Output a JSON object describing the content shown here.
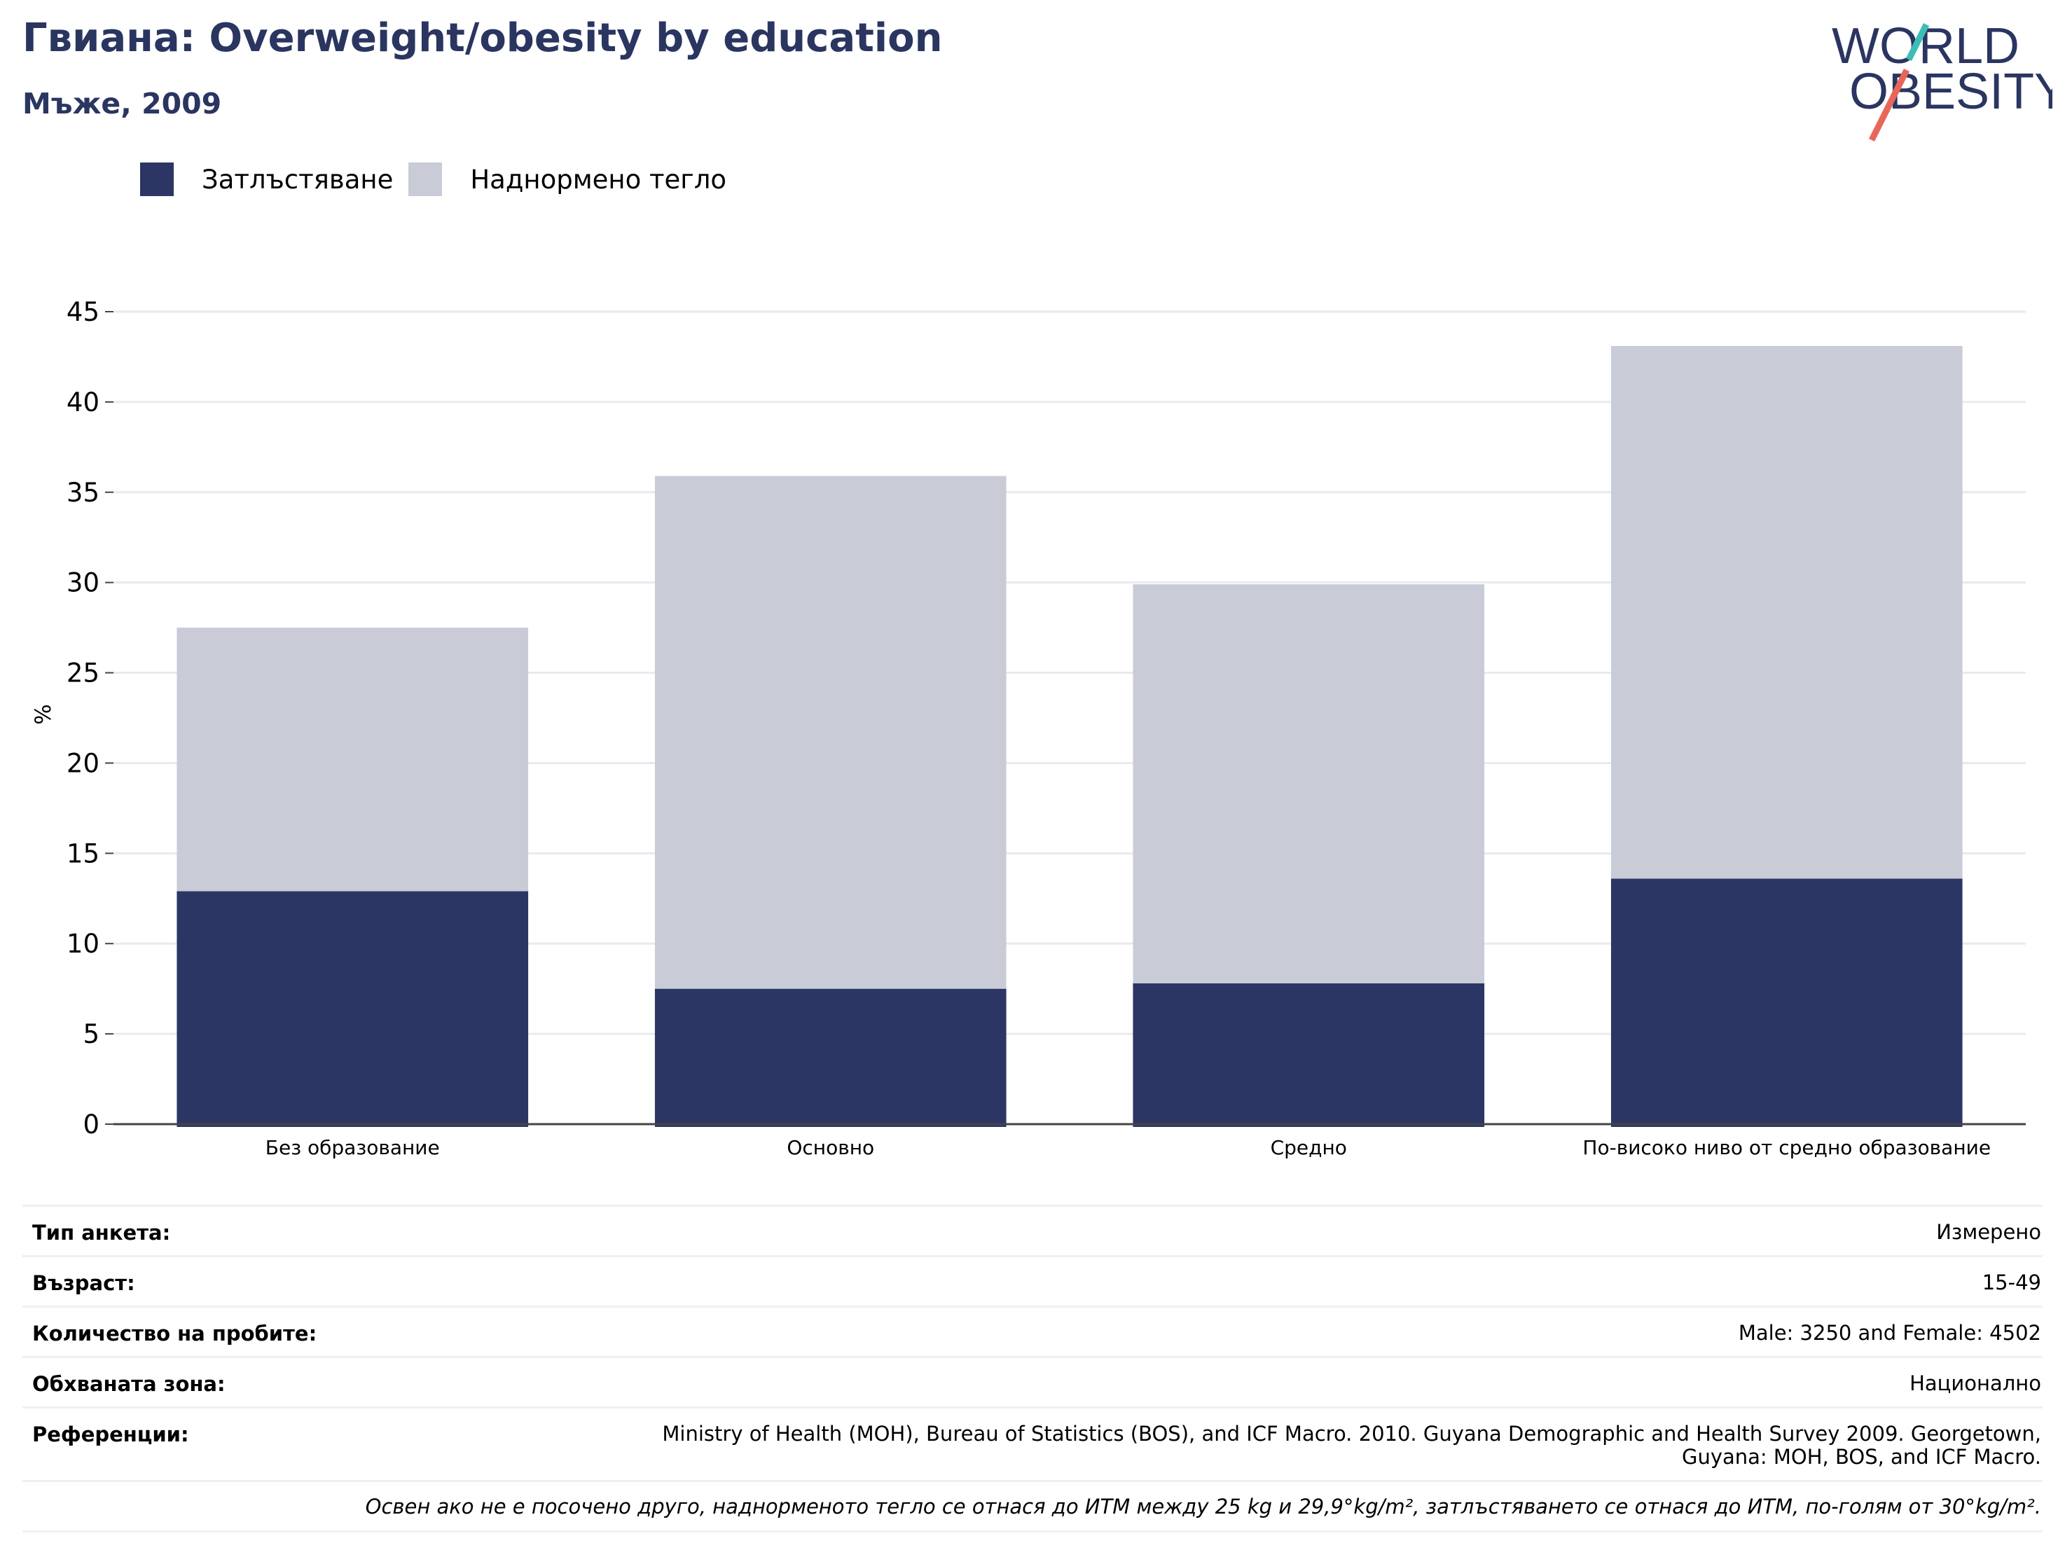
{
  "header": {
    "title": "Гвиана: Overweight/obesity by education",
    "subtitle": "Мъже, 2009"
  },
  "logo": {
    "line1": "WORLD",
    "line2": "OBESITY"
  },
  "colors": {
    "obesity": "#2b3665",
    "overweight": "#c9cbd7",
    "title": "#2a3560"
  },
  "legend": [
    {
      "label": "Затлъстяване",
      "color": "#2b3665"
    },
    {
      "label": "Наднормено тегло",
      "color": "#c9cbd7"
    }
  ],
  "chart_data": {
    "type": "bar",
    "stacked": true,
    "categories": [
      "Без образование",
      "Основно",
      "Средно",
      "По-високо ниво от средно образование"
    ],
    "series": [
      {
        "name": "Затлъстяване",
        "values": [
          12.9,
          7.5,
          7.8,
          13.6
        ]
      },
      {
        "name": "Наднормено тегло",
        "values": [
          14.6,
          28.4,
          22.1,
          29.5
        ]
      }
    ],
    "ylabel": "%",
    "ylim": [
      0,
      45
    ],
    "yticks": [
      0,
      5,
      10,
      15,
      20,
      25,
      30,
      35,
      40,
      45
    ],
    "grid": true,
    "legend_position": "top-left"
  },
  "meta": [
    {
      "key": "Тип анкета:",
      "value": "Измерено"
    },
    {
      "key": "Възраст:",
      "value": "15-49"
    },
    {
      "key": "Количество на пробите:",
      "value": "Male: 3250 and Female: 4502"
    },
    {
      "key": "Обхваната зона:",
      "value": "Национално"
    },
    {
      "key": "Референции:",
      "value": "Ministry of Health (MOH), Bureau of Statistics (BOS), and ICF Macro. 2010. Guyana Demographic and Health Survey 2009. Georgetown, Guyana: MOH, BOS, and ICF Macro."
    }
  ],
  "note": "Освен ако не е посочено друго, наднорменото тегло се отнася до ИТМ между 25 kg и 29,9°kg/m², затлъстяването се отнася до ИТМ, по-голям от 30°kg/m²."
}
